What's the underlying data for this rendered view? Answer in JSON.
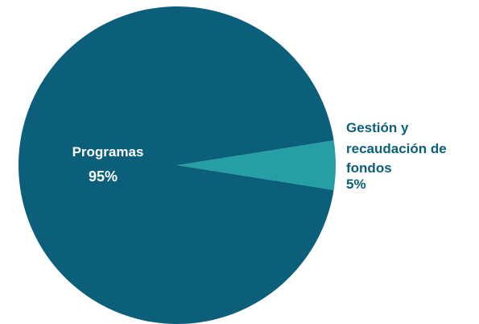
{
  "chart_data": {
    "type": "pie",
    "slices": [
      {
        "name_lines": [
          "Programas"
        ],
        "percent_label": "95%",
        "value": 95,
        "color": "#0b5f7a"
      },
      {
        "name_lines": [
          "Gestión y",
          "recaudación de",
          "fondos"
        ],
        "percent_label": "5%",
        "value": 5,
        "color": "#259ea4"
      }
    ],
    "colors": {
      "outside_label_text": "#0b5f7a",
      "inside_label_text": "#ffffff"
    }
  }
}
